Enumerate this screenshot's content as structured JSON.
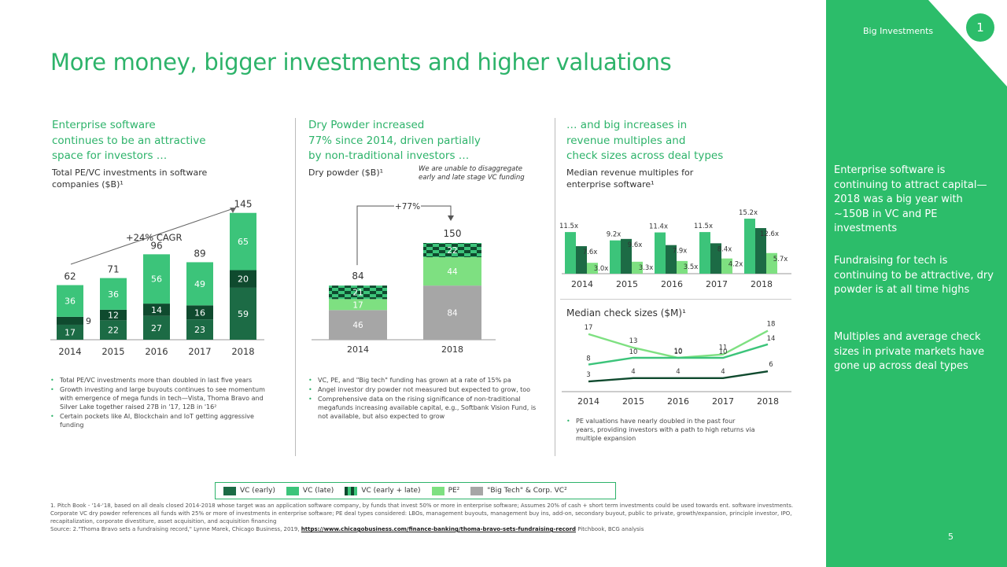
{
  "title": "More money, bigger investments and higher valuations",
  "sidebar": {
    "label": "Big Investments",
    "number": "1",
    "paragraphs": [
      "Enterprise software is continuing to attract capital—2018 was a big year with ~150B in VC and PE investments",
      "Fundraising for tech is continuing to be attractive, dry powder is at all time highs",
      "Multiples and average check sizes in private markets have gone up across deal types"
    ],
    "page_number": "5"
  },
  "col1": {
    "heading": [
      "Enterprise software",
      "continues to be an attractive",
      "space for investors …"
    ],
    "sub": [
      "Total PE/VC investments in software",
      "companies ($B)¹"
    ],
    "cagr": "+24% CAGR",
    "bullets": [
      "Total PE/VC investments more than doubled in last five years",
      "Growth investing and large buyouts continues to see momentum with emergence of mega funds in tech—Vista, Thoma Bravo and Silver Lake together raised 27B in '17, 12B in '16²",
      "Certain pockets like AI, Blockchain and IoT getting aggressive funding"
    ]
  },
  "col2": {
    "heading": [
      "Dry Powder increased",
      "77% since 2014, driven partially",
      "by non-traditional investors …"
    ],
    "sub": "Dry powder ($B)¹",
    "note": [
      "We are unable to disaggregate",
      "early and late stage VC funding"
    ],
    "growth": "+77%",
    "bullets": [
      "VC, PE, and \"Big tech\" funding has grown at a rate of 15% pa",
      "Angel investor dry powder not measured but expected to grow, too",
      "Comprehensive data on the rising significance of non-traditional megafunds increasing available capital, e.g., Softbank Vision Fund, is not available, but also expected to grow"
    ]
  },
  "col3": {
    "heading": [
      "… and big increases in",
      "revenue multiples and",
      "check sizes across deal types"
    ],
    "sub": [
      "Median revenue multiples for",
      "enterprise software¹"
    ],
    "check_title": "Median check sizes ($M)¹",
    "bullets": [
      "PE valuations have nearly doubled in the past four years, providing investors with a path to high returns via multiple expansion"
    ]
  },
  "legend": [
    {
      "label": "VC (early)",
      "color": "#1c6b45"
    },
    {
      "label": "VC (late)",
      "color": "#3cc47a"
    },
    {
      "label": "VC (early + late)",
      "color": "#0f4a2e"
    },
    {
      "label": "PE²",
      "color": "#7ee081"
    },
    {
      "label": "\"Big Tech\" & Corp. VC²",
      "color": "#a6a6a6"
    }
  ],
  "footnote": {
    "text": "1. Pitch Book - '14-'18, based on all deals closed 2014-2018 whose target was an application software company, by funds that invest 50% or more in enterprise software; Assumes 20% of cash + short term investments could be used towards ent. software investments. Corporate VC dry powder references all funds with 25% or more of investments in enterprise software; PE deal types considered: LBOs, management buyouts, management buy ins, add-on, secondary buyout, public to private, growth/expansion, principle investor, IPO, recapitalization, corporate divestiture, asset acquisition, and acquisition financing",
    "source": "Source: 2.\"Thoma Bravo sets a fundraising record,\" Lynne Marek, Chicago Business, 2019,",
    "link": "https://www.chicagobusiness.com/finance-banking/thoma-bravo-sets-fundraising-record",
    "tail": "Pitchbook, BCG analysis"
  },
  "colors": {
    "vc_early": "#1c6b45",
    "vc_late": "#3cc47a",
    "vc_combined": "#0f4a2e",
    "pe": "#7ee081",
    "bigtech": "#a6a6a6",
    "accent": "#2db36a",
    "sidebar": "#2cbd6a"
  },
  "chart_data": [
    {
      "type": "bar",
      "stacked": true,
      "categories": [
        "2014",
        "2015",
        "2016",
        "2017",
        "2018"
      ],
      "totals": [
        62,
        71,
        96,
        89,
        145
      ],
      "series": [
        {
          "name": "VC (early)",
          "values": [
            17,
            22,
            27,
            23,
            0
          ]
        },
        {
          "name": "VC (early + late)",
          "values": [
            9,
            12,
            14,
            16,
            0
          ]
        },
        {
          "name": "VC (late)",
          "values": [
            36,
            36,
            56,
            49,
            0
          ]
        },
        {
          "name": "VC (early)",
          "values": [
            0,
            0,
            0,
            0,
            59
          ]
        },
        {
          "name": "VC (early + late)",
          "values": [
            0,
            0,
            0,
            0,
            20
          ]
        },
        {
          "name": "VC (late)",
          "values": [
            0,
            0,
            0,
            0,
            65
          ]
        }
      ],
      "annotation": "+24% CAGR"
    },
    {
      "type": "bar",
      "stacked": true,
      "categories": [
        "2014",
        "2018"
      ],
      "totals": [
        84,
        150
      ],
      "series": [
        {
          "name": "\"Big Tech\" & Corp. VC²",
          "values": [
            46,
            84
          ]
        },
        {
          "name": "PE²",
          "values": [
            17,
            44
          ]
        },
        {
          "name": "VC (early + late)",
          "values": [
            21,
            22
          ]
        }
      ],
      "annotation": "+77%"
    },
    {
      "type": "bar",
      "categories": [
        "2014",
        "2015",
        "2016",
        "2017",
        "2018"
      ],
      "series": [
        {
          "name": "VC (late)",
          "values": [
            11.5,
            9.2,
            11.4,
            11.5,
            15.2
          ],
          "labels": [
            "11.5x",
            "9.2x",
            "11.4x",
            "11.5x",
            "15.2x"
          ]
        },
        {
          "name": "VC (early)",
          "values": [
            7.6,
            9.6,
            7.9,
            8.4,
            12.6
          ],
          "labels": [
            "7.6x",
            "9.6x",
            "7.9x",
            "8.4x",
            "12.6x"
          ]
        },
        {
          "name": "PE²",
          "values": [
            3.0,
            3.3,
            3.5,
            4.2,
            5.7
          ],
          "labels": [
            "3.0x",
            "3.3x",
            "3.5x",
            "4.2x",
            "5.7x"
          ]
        }
      ],
      "ylim": [
        0,
        16
      ]
    },
    {
      "type": "line",
      "title": "Median check sizes ($M)¹",
      "x": [
        "2014",
        "2015",
        "2016",
        "2017",
        "2018"
      ],
      "series": [
        {
          "name": "PE²",
          "values": [
            17,
            13,
            10,
            11,
            18
          ]
        },
        {
          "name": "VC (late)",
          "values": [
            8,
            10,
            10,
            10,
            14
          ]
        },
        {
          "name": "VC (early)",
          "values": [
            3,
            4,
            4,
            4,
            6
          ]
        }
      ],
      "ylim": [
        0,
        20
      ]
    }
  ]
}
